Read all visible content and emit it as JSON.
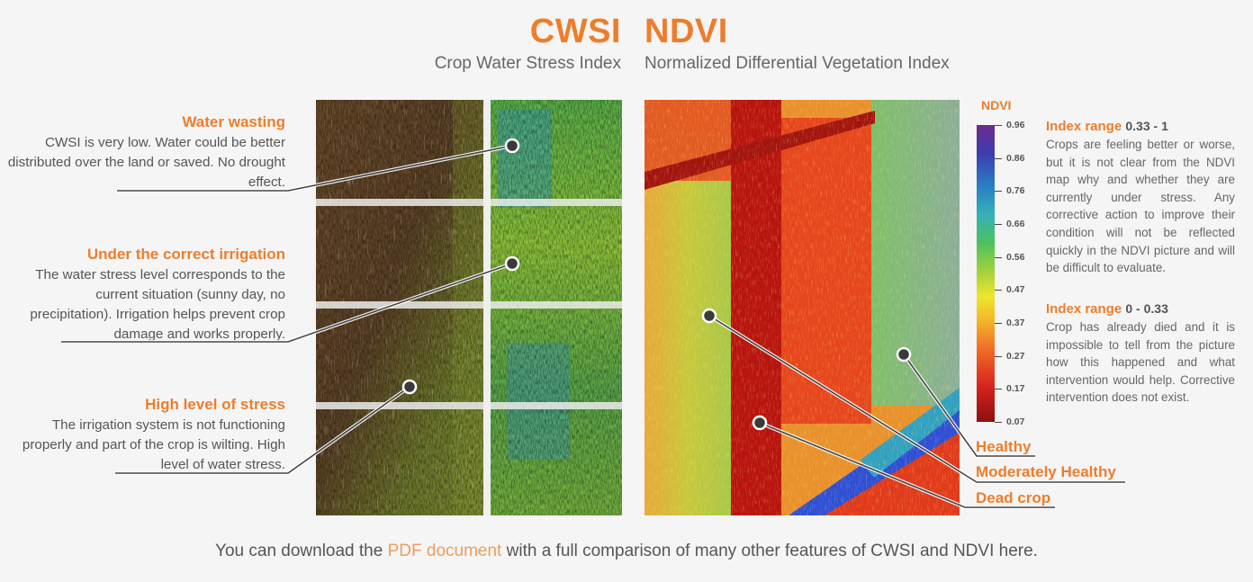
{
  "header": {
    "cwsi_title": "CWSI",
    "cwsi_subtitle": "Crop Water Stress Index",
    "ndvi_title": "NDVI",
    "ndvi_subtitle": "Normalized Differential Vegetation Index"
  },
  "cwsi_annotations": [
    {
      "title": "Water wasting",
      "text": "CWSI is very low. Water could be better distributed over the land or saved. No drought effect."
    },
    {
      "title": "Under the correct irrigation",
      "text": "The water stress level corresponds to the current situation (sunny day, no precipitation). Irrigation helps prevent crop damage and works properly."
    },
    {
      "title": "High level of stress",
      "text": "The irrigation system is not functioning properly and part of the crop is wilting. High level of water stress."
    }
  ],
  "legend": {
    "title": "NDVI",
    "ticks": [
      "0.96",
      "0.86",
      "0.76",
      "0.66",
      "0.56",
      "0.47",
      "0.37",
      "0.27",
      "0.17",
      "0.07"
    ],
    "colors": {
      "top": "#6b2b8f",
      "mid": "#efe62e",
      "bottom": "#8c1010"
    }
  },
  "ndvi_ranges": [
    {
      "label": "Index range",
      "range": "0.33 - 1",
      "text": "Crops are feeling better or worse, but it is not clear from the NDVI map why and whether they are currently under stress. Any corrective action to improve their condition will not be reflected quickly in the NDVI picture and will be difficult to evaluate."
    },
    {
      "label": "Index range",
      "range": "0 - 0.33",
      "text": "Crop has already died and it is impossible to tell from the picture how this happened and what intervention would help. Corrective intervention does not exist."
    }
  ],
  "ndvi_labels": {
    "healthy": "Healthy",
    "moderate": "Moderately Healthy",
    "dead": "Dead crop"
  },
  "footer": {
    "before": "You can download the ",
    "link": "PDF document",
    "after": " with a full comparison of many other features of CWSI and NDVI here."
  },
  "colors": {
    "accent": "#ee7d2b",
    "text": "#555555",
    "background": "#f5f5f5"
  }
}
